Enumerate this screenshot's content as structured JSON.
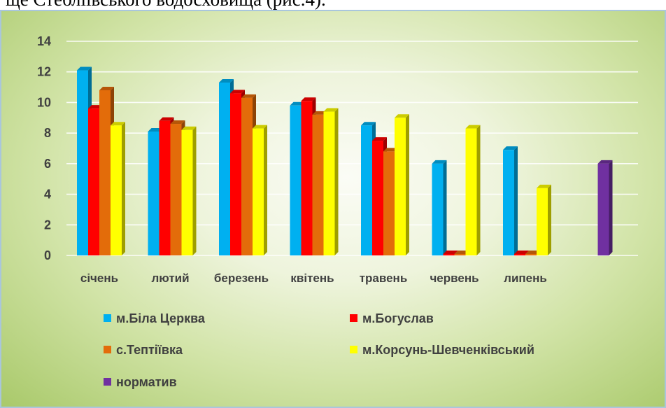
{
  "caption": "ще Стебліївського водосховища (рис.4).",
  "colors": {
    "m_bila_tserkva": "#00b0f0",
    "m_bohuslav": "#ff0000",
    "s_teptiivka": "#e36c0a",
    "m_korsun": "#ffff00",
    "normatyv": "#7030a0"
  },
  "chart_data": {
    "type": "bar",
    "categories": [
      "січень",
      "лютий",
      "березень",
      "квітень",
      "травень",
      "червень",
      "липень",
      ""
    ],
    "ylim": [
      0,
      14
    ],
    "yticks": [
      "0",
      "2",
      "4",
      "6",
      "8",
      "10",
      "12",
      "14"
    ],
    "grid": true,
    "legend_position": "bottom",
    "series": [
      {
        "name": "м.Біла Церква",
        "values": [
          12.1,
          8.1,
          11.3,
          9.8,
          8.5,
          6.0,
          6.9,
          null
        ]
      },
      {
        "name": "м.Богуслав",
        "values": [
          9.6,
          8.8,
          10.6,
          10.1,
          7.5,
          0.0,
          0.0,
          null
        ]
      },
      {
        "name": "с.Тептіївка",
        "values": [
          10.8,
          8.6,
          10.3,
          9.2,
          6.8,
          0.0,
          0.0,
          null
        ]
      },
      {
        "name": "м.Корсунь-Шевченківський",
        "values": [
          8.5,
          8.2,
          8.3,
          9.4,
          9.0,
          8.3,
          4.4,
          null
        ]
      },
      {
        "name": "норматив",
        "values": [
          null,
          null,
          null,
          null,
          null,
          null,
          null,
          6.0
        ]
      }
    ]
  }
}
